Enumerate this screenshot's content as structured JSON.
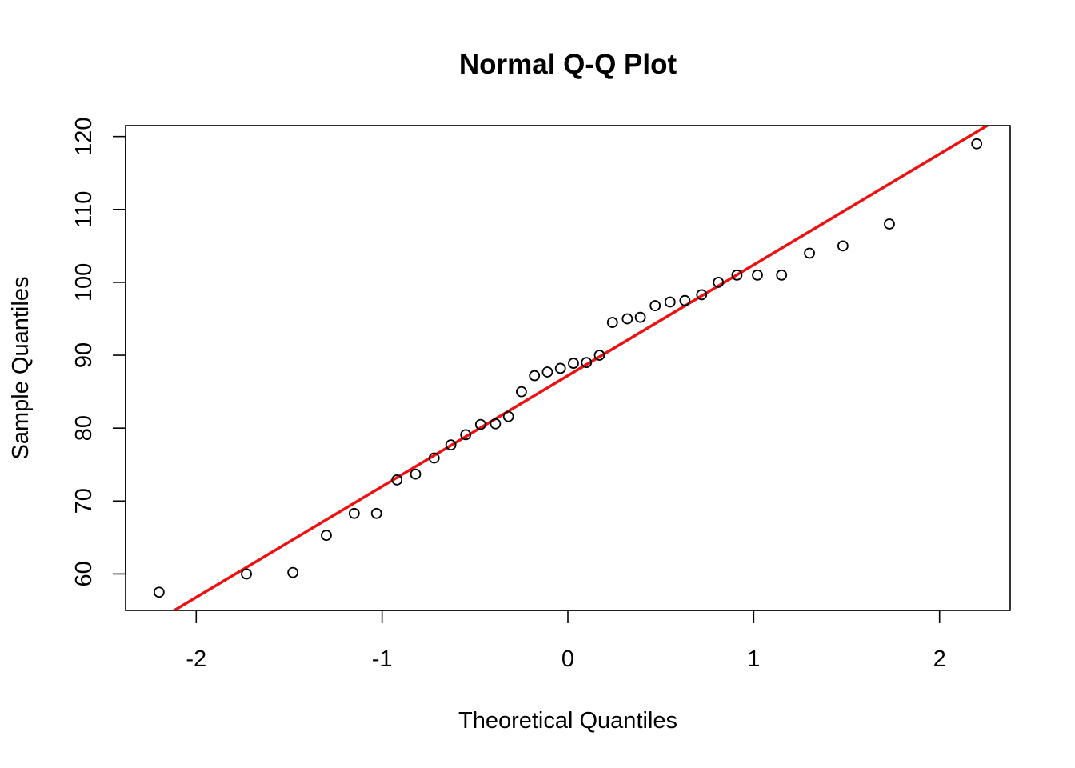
{
  "chart_data": {
    "type": "scatter",
    "title": "Normal Q-Q Plot",
    "xlabel": "Theoretical Quantiles",
    "ylabel": "Sample Quantiles",
    "xlim": [
      -2.38,
      2.38
    ],
    "ylim": [
      55.0,
      121.5
    ],
    "x_ticks": [
      -2,
      -1,
      0,
      1,
      2
    ],
    "x_tick_labels": [
      "-2",
      "-1",
      "0",
      "1",
      "2"
    ],
    "y_ticks": [
      60,
      70,
      80,
      90,
      100,
      110,
      120
    ],
    "y_tick_labels": [
      "60",
      "70",
      "80",
      "90",
      "100",
      "110",
      "120"
    ],
    "grid": false,
    "points": [
      {
        "x": -2.2,
        "y": 57.5
      },
      {
        "x": -1.73,
        "y": 60.0
      },
      {
        "x": -1.48,
        "y": 60.2
      },
      {
        "x": -1.3,
        "y": 65.3
      },
      {
        "x": -1.15,
        "y": 68.3
      },
      {
        "x": -1.03,
        "y": 68.3
      },
      {
        "x": -0.92,
        "y": 72.9
      },
      {
        "x": -0.82,
        "y": 73.7
      },
      {
        "x": -0.72,
        "y": 75.9
      },
      {
        "x": -0.63,
        "y": 77.7
      },
      {
        "x": -0.55,
        "y": 79.1
      },
      {
        "x": -0.47,
        "y": 80.5
      },
      {
        "x": -0.39,
        "y": 80.6
      },
      {
        "x": -0.32,
        "y": 81.6
      },
      {
        "x": -0.25,
        "y": 85.0
      },
      {
        "x": -0.18,
        "y": 87.2
      },
      {
        "x": -0.11,
        "y": 87.7
      },
      {
        "x": -0.04,
        "y": 88.2
      },
      {
        "x": 0.03,
        "y": 88.9
      },
      {
        "x": 0.1,
        "y": 89.0
      },
      {
        "x": 0.17,
        "y": 90.0
      },
      {
        "x": 0.24,
        "y": 94.5
      },
      {
        "x": 0.32,
        "y": 95.0
      },
      {
        "x": 0.39,
        "y": 95.2
      },
      {
        "x": 0.47,
        "y": 96.8
      },
      {
        "x": 0.55,
        "y": 97.3
      },
      {
        "x": 0.63,
        "y": 97.5
      },
      {
        "x": 0.72,
        "y": 98.3
      },
      {
        "x": 0.81,
        "y": 100.0
      },
      {
        "x": 0.91,
        "y": 101.0
      },
      {
        "x": 1.02,
        "y": 101.0
      },
      {
        "x": 1.15,
        "y": 101.0
      },
      {
        "x": 1.3,
        "y": 104.0
      },
      {
        "x": 1.48,
        "y": 105.0
      },
      {
        "x": 1.73,
        "y": 108.0
      },
      {
        "x": 2.2,
        "y": 119.0
      }
    ],
    "reference_line": {
      "intercept": 87.2,
      "slope": 15.2,
      "color": "#ee1111"
    }
  }
}
